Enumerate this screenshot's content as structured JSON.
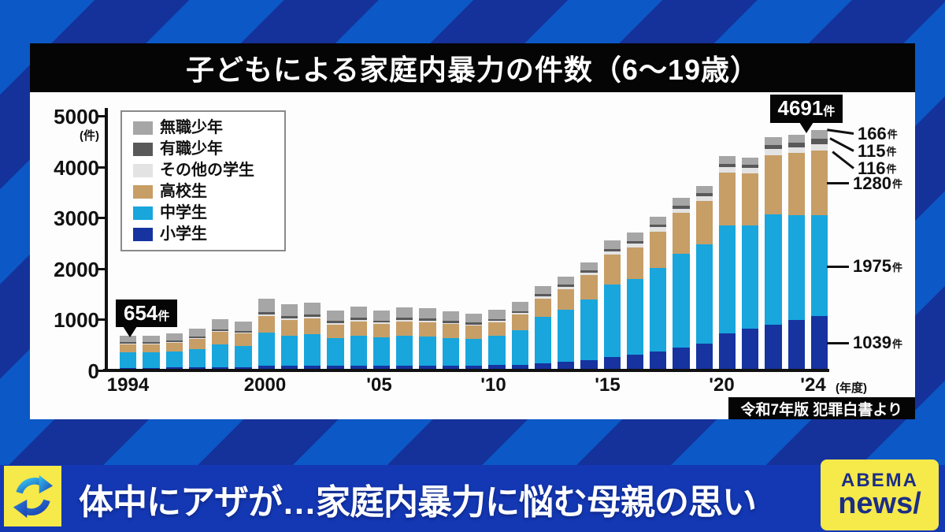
{
  "header": {
    "title": "子どもによる家庭内暴力の件数（6～19歳）"
  },
  "source": {
    "label": "令和7年版 犯罪白書より"
  },
  "ticker": {
    "headline": "体中にアザが…家庭内暴力に悩む母親の思い"
  },
  "logo": {
    "line1": "ABEMA",
    "line2": "news/"
  },
  "colors": {
    "bg_light": "#0b58c6",
    "bg_dark": "#15319a",
    "ticker_blue": "#1438b4",
    "accent_yellow": "#f6e94a",
    "logo_text": "#1b2e86"
  },
  "chart_data": {
    "type": "bar",
    "stacked": true,
    "title": "子どもによる家庭内暴力の件数（6～19歳）",
    "y_axis": {
      "unit_label": "(件)",
      "ticks": [
        0,
        1000,
        2000,
        3000,
        4000,
        5000
      ],
      "max": 5000,
      "grid": false
    },
    "x_axis": {
      "suffix": "(年度)",
      "tick_labels": [
        {
          "index": 0,
          "label": "1994"
        },
        {
          "index": 6,
          "label": "2000"
        },
        {
          "index": 11,
          "label": "'05"
        },
        {
          "index": 16,
          "label": "'10"
        },
        {
          "index": 21,
          "label": "'15"
        },
        {
          "index": 26,
          "label": "'20"
        },
        {
          "index": 30,
          "label": "'24"
        }
      ]
    },
    "legend": [
      {
        "label": "無職少年",
        "color": "#a6a6a6"
      },
      {
        "label": "有職少年",
        "color": "#595959"
      },
      {
        "label": "その他の学生",
        "color": "#e3e3e3"
      },
      {
        "label": "高校生",
        "color": "#c79e66"
      },
      {
        "label": "中学生",
        "color": "#18a6dd"
      },
      {
        "label": "小学生",
        "color": "#16339f"
      }
    ],
    "years_start": 1994,
    "years_end": 2024,
    "series": [
      {
        "name": "小学生",
        "color": "#16339f",
        "values": [
          20,
          20,
          25,
          30,
          35,
          35,
          60,
          55,
          60,
          55,
          60,
          55,
          60,
          60,
          60,
          60,
          70,
          85,
          115,
          140,
          175,
          240,
          280,
          340,
          420,
          490,
          700,
          790,
          870,
          960,
          1039
        ]
      },
      {
        "name": "中学生",
        "color": "#18a6dd",
        "values": [
          300,
          300,
          320,
          360,
          440,
          420,
          650,
          600,
          620,
          550,
          590,
          560,
          590,
          580,
          550,
          530,
          580,
          680,
          900,
          1020,
          1190,
          1410,
          1480,
          1640,
          1840,
          1950,
          2120,
          2030,
          2160,
          2060,
          1975
        ]
      },
      {
        "name": "高校生",
        "color": "#c79e66",
        "values": [
          160,
          160,
          170,
          195,
          250,
          235,
          330,
          305,
          310,
          270,
          285,
          270,
          285,
          280,
          270,
          260,
          270,
          300,
          370,
          410,
          470,
          590,
          630,
          720,
          800,
          850,
          1030,
          1020,
          1170,
          1220,
          1280
        ]
      },
      {
        "name": "その他の学生",
        "color": "#e3e3e3",
        "values": [
          15,
          15,
          15,
          15,
          20,
          20,
          30,
          30,
          30,
          25,
          28,
          25,
          28,
          27,
          25,
          25,
          28,
          32,
          40,
          45,
          55,
          65,
          70,
          80,
          90,
          95,
          110,
          105,
          115,
          118,
          116
        ]
      },
      {
        "name": "有職少年",
        "color": "#595959",
        "values": [
          25,
          25,
          25,
          30,
          35,
          30,
          50,
          45,
          45,
          40,
          40,
          38,
          40,
          40,
          38,
          35,
          35,
          35,
          40,
          40,
          45,
          55,
          55,
          60,
          60,
          60,
          70,
          65,
          80,
          90,
          115
        ]
      },
      {
        "name": "無職少年",
        "color": "#a6a6a6",
        "values": [
          134,
          130,
          145,
          160,
          200,
          190,
          260,
          235,
          235,
          210,
          217,
          202,
          207,
          203,
          187,
          180,
          177,
          188,
          160,
          151,
          156,
          171,
          161,
          156,
          155,
          151,
          147,
          139,
          156,
          149,
          166
        ]
      }
    ],
    "annotations": {
      "first_bar": {
        "num": "654",
        "unit": "件",
        "bar_index": 0
      },
      "last_bar": {
        "num": "4691",
        "unit": "件",
        "bar_index": 30
      }
    },
    "side_labels": [
      {
        "num": "166",
        "unit": "件"
      },
      {
        "num": "115",
        "unit": "件"
      },
      {
        "num": "116",
        "unit": "件"
      },
      {
        "num": "1280",
        "unit": "件"
      },
      {
        "num": "1975",
        "unit": "件"
      },
      {
        "num": "1039",
        "unit": "件"
      }
    ]
  }
}
